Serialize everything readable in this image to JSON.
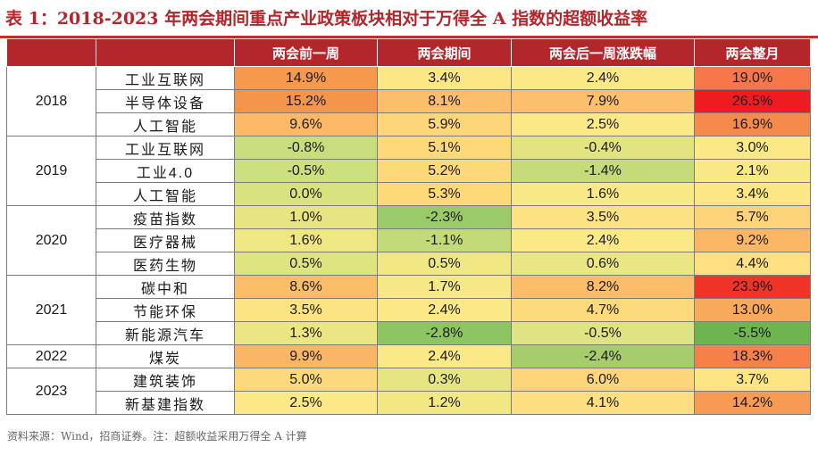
{
  "title": "表 1：2018-2023 年两会期间重点产业政策板块相对于万得全 A 指数的超额收益率",
  "header": {
    "c0": "",
    "c1": "",
    "c2": "两会前一周",
    "c3": "两会期间",
    "c4": "两会后一周涨跌幅",
    "c5": "两会整月"
  },
  "groups": [
    {
      "year": "2018",
      "rows": [
        {
          "sector": "工业互联网",
          "v": [
            "14.9%",
            "3.4%",
            "2.4%",
            "19.0%"
          ],
          "c": [
            "#f59a4d",
            "#fde684",
            "#fbe987",
            "#f5774a"
          ]
        },
        {
          "sector": "半导体设备",
          "v": [
            "15.2%",
            "8.1%",
            "7.9%",
            "26.5%"
          ],
          "c": [
            "#f5954b",
            "#fcbe6a",
            "#fcbf6b",
            "#ee1c20"
          ]
        },
        {
          "sector": "人工智能",
          "v": [
            "9.6%",
            "5.9%",
            "2.5%",
            "16.9%"
          ],
          "c": [
            "#fbb865",
            "#fdd679",
            "#fbe987",
            "#f58a4d"
          ]
        }
      ]
    },
    {
      "year": "2019",
      "rows": [
        {
          "sector": "工业互联网",
          "v": [
            "-0.8%",
            "5.1%",
            "-0.4%",
            "3.0%"
          ],
          "c": [
            "#c8de7e",
            "#fdd979",
            "#e2e481",
            "#fbe987"
          ]
        },
        {
          "sector": "工业4.0",
          "v": [
            "-0.5%",
            "5.2%",
            "-1.4%",
            "2.1%"
          ],
          "c": [
            "#cce07f",
            "#fdd979",
            "#c5da79",
            "#f9e986"
          ]
        },
        {
          "sector": "人工智能",
          "v": [
            "0.0%",
            "5.3%",
            "1.6%",
            "3.4%"
          ],
          "c": [
            "#d8e37f",
            "#fdd978",
            "#f8e986",
            "#fde684"
          ]
        }
      ]
    },
    {
      "year": "2020",
      "rows": [
        {
          "sector": "疫苗指数",
          "v": [
            "1.0%",
            "-2.3%",
            "3.5%",
            "5.7%"
          ],
          "c": [
            "#e6e582",
            "#9bcb68",
            "#fde283",
            "#fdd379"
          ]
        },
        {
          "sector": "医疗器械",
          "v": [
            "1.6%",
            "-1.1%",
            "2.4%",
            "9.2%"
          ],
          "c": [
            "#efe784",
            "#c2da78",
            "#fbe987",
            "#fbb766"
          ]
        },
        {
          "sector": "医药生物",
          "v": [
            "0.5%",
            "0.5%",
            "0.6%",
            "4.4%"
          ],
          "c": [
            "#dee480",
            "#eee783",
            "#eae684",
            "#fde082"
          ]
        }
      ]
    },
    {
      "year": "2021",
      "rows": [
        {
          "sector": "碳中和",
          "v": [
            "8.6%",
            "1.7%",
            "8.2%",
            "23.9%"
          ],
          "c": [
            "#fbbd68",
            "#f6e985",
            "#fcbc69",
            "#ef3326"
          ]
        },
        {
          "sector": "节能环保",
          "v": [
            "3.5%",
            "2.4%",
            "4.7%",
            "13.0%"
          ],
          "c": [
            "#fde483",
            "#fbe987",
            "#fdda7b",
            "#f8a95b"
          ]
        },
        {
          "sector": "新能源汽车",
          "v": [
            "1.3%",
            "-2.8%",
            "-0.5%",
            "-5.5%"
          ],
          "c": [
            "#ebe683",
            "#8ec563",
            "#dfe381",
            "#6fb54f"
          ]
        }
      ]
    },
    {
      "year": "2022",
      "rows": [
        {
          "sector": "煤炭",
          "v": [
            "9.9%",
            "2.4%",
            "-2.4%",
            "18.3%"
          ],
          "c": [
            "#fbb665",
            "#fbe987",
            "#a6cc6b",
            "#f5804a"
          ]
        }
      ]
    },
    {
      "year": "2023",
      "rows": [
        {
          "sector": "建筑装饰",
          "v": [
            "5.0%",
            "0.3%",
            "6.0%",
            "3.7%"
          ],
          "c": [
            "#fdd97b",
            "#e7e582",
            "#fdd57a",
            "#fde584"
          ]
        },
        {
          "sector": "新基建指数",
          "v": [
            "2.5%",
            "1.2%",
            "4.1%",
            "14.2%"
          ],
          "c": [
            "#fbe987",
            "#f1e884",
            "#fddf81",
            "#f79a53"
          ]
        }
      ]
    }
  ],
  "source": "资料来源：Wind，招商证券。注：超额收益采用万得全 A 计算"
}
